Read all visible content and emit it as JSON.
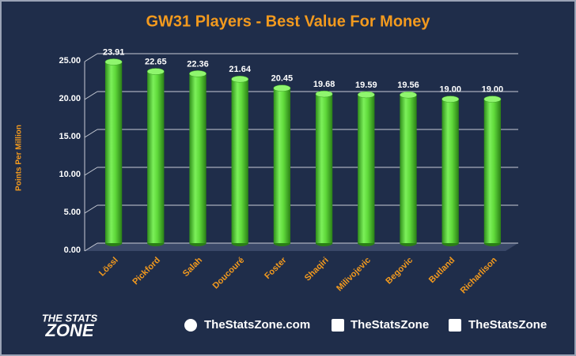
{
  "chart_data": {
    "type": "bar",
    "title": "GW31 Players - Best Value For Money",
    "y_label": "Points Per Million",
    "categories": [
      "Lössl",
      "Pickford",
      "Salah",
      "Doucouré",
      "Foster",
      "Shaqiri",
      "Milivojevic",
      "Begovic",
      "Butland",
      "Richarlison"
    ],
    "values": [
      23.91,
      22.65,
      22.36,
      21.64,
      20.45,
      19.68,
      19.59,
      19.56,
      19.0,
      19.0
    ],
    "value_labels": [
      "23.91",
      "22.65",
      "22.36",
      "21.64",
      "20.45",
      "19.68",
      "19.59",
      "19.56",
      "19.00",
      "19.00"
    ],
    "color": "#5fd93a",
    "ylim": [
      0,
      25
    ],
    "yticks": [
      {
        "value": 0,
        "label": "0.00"
      },
      {
        "value": 5,
        "label": "5.00"
      },
      {
        "value": 10,
        "label": "10.00"
      },
      {
        "value": 15,
        "label": "15.00"
      },
      {
        "value": 20,
        "label": "20.00"
      },
      {
        "value": 25,
        "label": "25.00"
      }
    ],
    "grid": true
  },
  "footer": {
    "logo_top": "THE STATS",
    "logo_bottom": "ZONE",
    "website": "TheStatsZone.com",
    "facebook": "TheStatsZone",
    "twitter": "TheStatsZone"
  }
}
